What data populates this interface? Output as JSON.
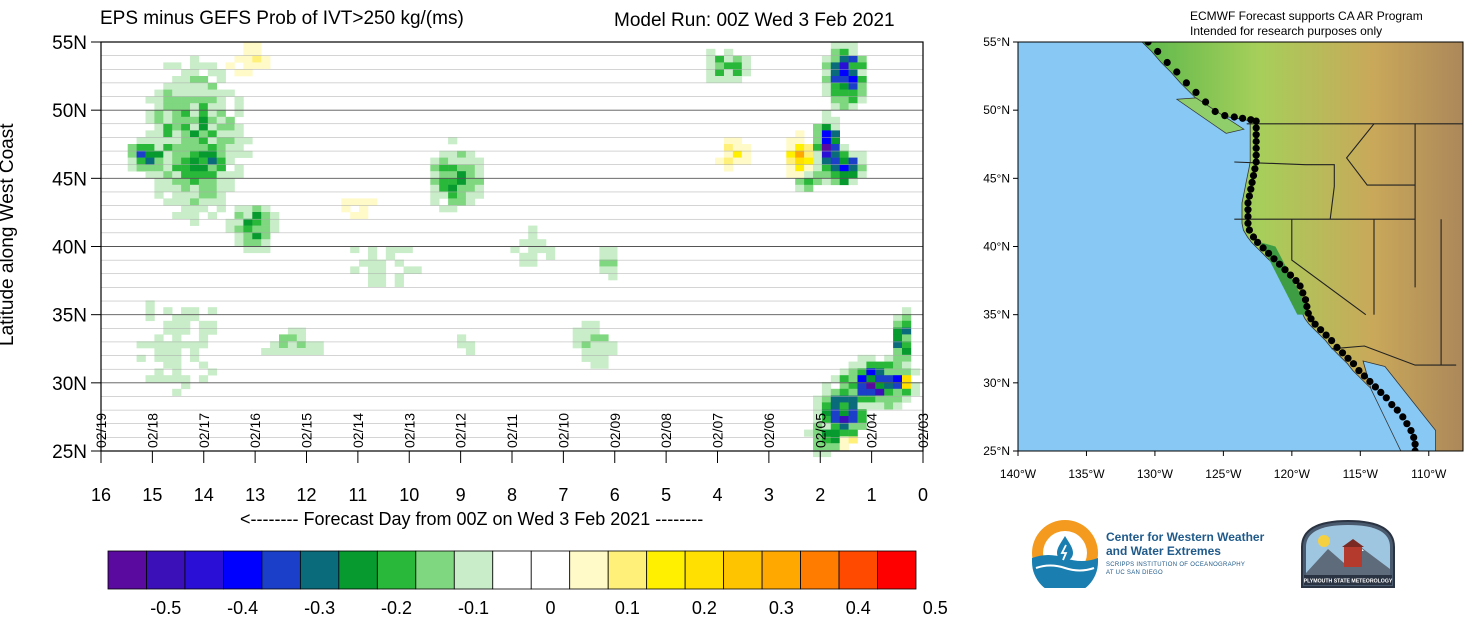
{
  "title": "EPS minus GEFS Prob of IVT>250 kg/(ms)",
  "model_run": "Model Run: 00Z Wed 3 Feb 2021",
  "map_title_line1": "ECMWF Forecast supports CA AR Program",
  "map_title_line2": "Intended for research purposes only",
  "logos": {
    "cw3e_name_line1": "Center for Western Weather",
    "cw3e_name_line2": "and Water Extremes",
    "cw3e_sub_line1": "SCRIPPS INSTITUTION OF OCEANOGRAPHY",
    "cw3e_sub_line2": "AT UC SAN DIEGO",
    "plymouth": "PLYMOUTH STATE METEOROLOGY"
  },
  "colors": {
    "ocean": "#87c8f5",
    "palette": [
      "#5a0a9e",
      "#3c10b8",
      "#2a0fd6",
      "#0000ff",
      "#1b3fc9",
      "#0a6b7a",
      "#079a2f",
      "#2ab83a",
      "#7fd77f",
      "#c8edc8",
      "#ffffff",
      "#ffffff",
      "#fffac8",
      "#fff07a",
      "#fff000",
      "#ffe000",
      "#ffc400",
      "#ffa800",
      "#ff7c00",
      "#ff4a00",
      "#ff0000"
    ]
  },
  "chart_data": [
    {
      "type": "heatmap",
      "title": "EPS minus GEFS Prob of IVT>250 kg/(ms)",
      "subtitle": "Model Run: 00Z Wed 3 Feb 2021",
      "xlabel": "<-------- Forecast Day from 00Z on Wed 3 Feb 2021 --------",
      "ylabel": "Latitude along West Coast",
      "xlim": [
        16,
        0
      ],
      "ylim": [
        25,
        55
      ],
      "x_ticks": [
        "16",
        "15",
        "14",
        "13",
        "12",
        "11",
        "10",
        "9",
        "8",
        "7",
        "6",
        "5",
        "4",
        "3",
        "2",
        "1",
        "0"
      ],
      "y_ticks": [
        "25N",
        "30N",
        "35N",
        "40N",
        "45N",
        "50N",
        "55N"
      ],
      "date_labels": [
        {
          "x": 16,
          "label": "02/19"
        },
        {
          "x": 15,
          "label": "02/18"
        },
        {
          "x": 14,
          "label": "02/17"
        },
        {
          "x": 13,
          "label": "02/16"
        },
        {
          "x": 12,
          "label": "02/15"
        },
        {
          "x": 11,
          "label": "02/14"
        },
        {
          "x": 10,
          "label": "02/13"
        },
        {
          "x": 9,
          "label": "02/12"
        },
        {
          "x": 8,
          "label": "02/11"
        },
        {
          "x": 7,
          "label": "02/10"
        },
        {
          "x": 6,
          "label": "02/09"
        },
        {
          "x": 5,
          "label": "02/08"
        },
        {
          "x": 4,
          "label": "02/07"
        },
        {
          "x": 3,
          "label": "02/06"
        },
        {
          "x": 2,
          "label": "02/05"
        },
        {
          "x": 1,
          "label": "02/04"
        },
        {
          "x": 0,
          "label": "02/03"
        }
      ],
      "colorbar": {
        "levels": [
          -0.55,
          -0.5,
          -0.45,
          -0.4,
          -0.35,
          -0.3,
          -0.25,
          -0.2,
          -0.15,
          -0.1,
          -0.05,
          0,
          0.05,
          0.1,
          0.15,
          0.2,
          0.25,
          0.3,
          0.35,
          0.4,
          0.45,
          0.5,
          0.55
        ],
        "tick_labels": [
          "-0.5",
          "-0.4",
          "-0.3",
          "-0.2",
          "-0.1",
          "0",
          "0.1",
          "0.2",
          "0.3",
          "0.4",
          "0.5"
        ]
      },
      "blobs": [
        {
          "day": 14.2,
          "lat": 47.8,
          "rx": 0.9,
          "ry": 5.2,
          "value": -0.17
        },
        {
          "day": 14.0,
          "lat": 46.0,
          "rx": 0.45,
          "ry": 1.8,
          "value": -0.22
        },
        {
          "day": 15.1,
          "lat": 46.6,
          "rx": 0.3,
          "ry": 1.2,
          "value": -0.27
        },
        {
          "day": 13.0,
          "lat": 41.5,
          "rx": 0.4,
          "ry": 1.7,
          "value": -0.2
        },
        {
          "day": 9.1,
          "lat": 45.2,
          "rx": 0.5,
          "ry": 2.2,
          "value": -0.18
        },
        {
          "day": 3.8,
          "lat": 53.2,
          "rx": 0.45,
          "ry": 1.2,
          "value": -0.16
        },
        {
          "day": 1.5,
          "lat": 52.5,
          "rx": 0.3,
          "ry": 1.8,
          "value": -0.45
        },
        {
          "day": 1.85,
          "lat": 47.5,
          "rx": 0.2,
          "ry": 1.6,
          "value": -0.44
        },
        {
          "day": 1.55,
          "lat": 45.8,
          "rx": 0.3,
          "ry": 1.0,
          "value": -0.42
        },
        {
          "day": 2.2,
          "lat": 44.8,
          "rx": 0.3,
          "ry": 0.6,
          "value": -0.22
        },
        {
          "day": 0.9,
          "lat": 30.0,
          "rx": 0.6,
          "ry": 1.4,
          "value": -0.42
        },
        {
          "day": 1.6,
          "lat": 27.8,
          "rx": 0.4,
          "ry": 1.7,
          "value": -0.38
        },
        {
          "day": 1.9,
          "lat": 26.0,
          "rx": 0.25,
          "ry": 1.0,
          "value": -0.28
        },
        {
          "day": 0.3,
          "lat": 30.0,
          "rx": 0.1,
          "ry": 0.4,
          "value": 0.5
        },
        {
          "day": 3.7,
          "lat": 46.8,
          "rx": 0.35,
          "ry": 1.2,
          "value": 0.12
        },
        {
          "day": 2.4,
          "lat": 46.5,
          "rx": 0.2,
          "ry": 1.4,
          "value": 0.27
        },
        {
          "day": 1.6,
          "lat": 25.8,
          "rx": 0.3,
          "ry": 0.6,
          "value": 0.17
        },
        {
          "day": 13.1,
          "lat": 53.8,
          "rx": 0.6,
          "ry": 1.5,
          "value": 0.08
        },
        {
          "day": 11.0,
          "lat": 43.0,
          "rx": 0.5,
          "ry": 1.5,
          "value": 0.07
        },
        {
          "day": 6.4,
          "lat": 33.0,
          "rx": 0.45,
          "ry": 2.2,
          "value": -0.09
        },
        {
          "day": 6.1,
          "lat": 39.0,
          "rx": 0.25,
          "ry": 1.6,
          "value": -0.1
        },
        {
          "day": 12.3,
          "lat": 32.8,
          "rx": 0.6,
          "ry": 1.4,
          "value": -0.11
        },
        {
          "day": 8.9,
          "lat": 32.8,
          "rx": 0.3,
          "ry": 1.0,
          "value": -0.08
        },
        {
          "day": 7.6,
          "lat": 40.0,
          "rx": 0.5,
          "ry": 2.0,
          "value": -0.07
        },
        {
          "day": 10.5,
          "lat": 38.5,
          "rx": 1.0,
          "ry": 3.0,
          "value": -0.06
        },
        {
          "day": 14.5,
          "lat": 33.0,
          "rx": 1.2,
          "ry": 6.0,
          "value": -0.06
        },
        {
          "day": 0.4,
          "lat": 33.0,
          "rx": 0.15,
          "ry": 2.0,
          "value": -0.3
        }
      ]
    },
    {
      "type": "map",
      "title": "ECMWF Forecast supports CA AR Program",
      "x_ticks": [
        "140°W",
        "135°W",
        "130°W",
        "125°W",
        "120°W",
        "115°W",
        "110°W"
      ],
      "y_ticks": [
        "25°N",
        "30°N",
        "35°N",
        "40°N",
        "45°N",
        "50°N",
        "55°N"
      ],
      "lon_range": [
        -140,
        -107.5
      ],
      "lat_range": [
        25,
        55
      ],
      "coast_points": [
        [
          -130.5,
          55
        ],
        [
          -129.8,
          54.3
        ],
        [
          -129.1,
          53.5
        ],
        [
          -128.4,
          52.8
        ],
        [
          -127.7,
          52.0
        ],
        [
          -127.0,
          51.3
        ],
        [
          -126.3,
          50.6
        ],
        [
          -125.6,
          49.9
        ],
        [
          -124.9,
          49.6
        ],
        [
          -124.2,
          49.5
        ],
        [
          -123.6,
          49.4
        ],
        [
          -123.0,
          49.3
        ],
        [
          -122.6,
          49.2
        ],
        [
          -122.6,
          48.7
        ],
        [
          -122.6,
          48.2
        ],
        [
          -122.6,
          47.7
        ],
        [
          -122.6,
          47.2
        ],
        [
          -122.6,
          46.7
        ],
        [
          -122.6,
          46.2
        ],
        [
          -122.7,
          45.7
        ],
        [
          -122.8,
          45.2
        ],
        [
          -122.9,
          44.7
        ],
        [
          -123.0,
          44.2
        ],
        [
          -123.1,
          43.7
        ],
        [
          -123.2,
          43.2
        ],
        [
          -123.2,
          42.7
        ],
        [
          -123.2,
          42.2
        ],
        [
          -123.2,
          41.7
        ],
        [
          -123.1,
          41.2
        ],
        [
          -122.8,
          40.7
        ],
        [
          -122.5,
          40.3
        ],
        [
          -122.1,
          39.9
        ],
        [
          -121.7,
          39.5
        ],
        [
          -121.3,
          39.1
        ],
        [
          -120.9,
          38.7
        ],
        [
          -120.5,
          38.3
        ],
        [
          -120.1,
          37.9
        ],
        [
          -119.7,
          37.5
        ],
        [
          -119.4,
          37.1
        ],
        [
          -119.2,
          36.6
        ],
        [
          -119.0,
          36.1
        ],
        [
          -118.9,
          35.6
        ],
        [
          -118.8,
          35.1
        ],
        [
          -118.6,
          34.7
        ],
        [
          -118.3,
          34.3
        ],
        [
          -117.9,
          33.9
        ],
        [
          -117.5,
          33.5
        ],
        [
          -117.1,
          33.1
        ],
        [
          -116.7,
          32.6
        ],
        [
          -116.3,
          32.2
        ],
        [
          -115.9,
          31.8
        ],
        [
          -115.5,
          31.4
        ],
        [
          -115.1,
          30.9
        ],
        [
          -114.7,
          30.5
        ],
        [
          -114.3,
          30.1
        ],
        [
          -113.9,
          29.7
        ],
        [
          -113.5,
          29.3
        ],
        [
          -113.1,
          28.9
        ],
        [
          -112.7,
          28.4
        ],
        [
          -112.3,
          28.0
        ],
        [
          -111.9,
          27.5
        ],
        [
          -111.6,
          27.0
        ],
        [
          -111.3,
          26.5
        ],
        [
          -111.1,
          26.0
        ],
        [
          -111.0,
          25.5
        ],
        [
          -111.0,
          25.0
        ]
      ]
    }
  ]
}
